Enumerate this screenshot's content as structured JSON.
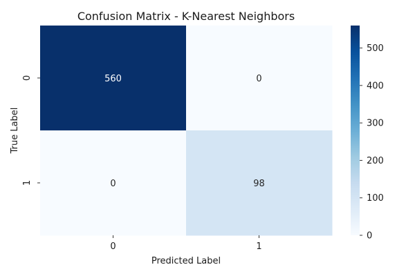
{
  "chart_data": {
    "type": "heatmap",
    "title": "Confusion Matrix - K-Nearest Neighbors",
    "xlabel": "Predicted Label",
    "ylabel": "True Label",
    "x_categories": [
      "0",
      "1"
    ],
    "y_categories": [
      "0",
      "1"
    ],
    "values": [
      [
        560,
        0
      ],
      [
        0,
        98
      ]
    ],
    "colorbar": {
      "colormap": "Blues",
      "range": [
        0,
        560
      ],
      "ticks": [
        0,
        100,
        200,
        300,
        400,
        500
      ]
    },
    "annotations": true
  }
}
